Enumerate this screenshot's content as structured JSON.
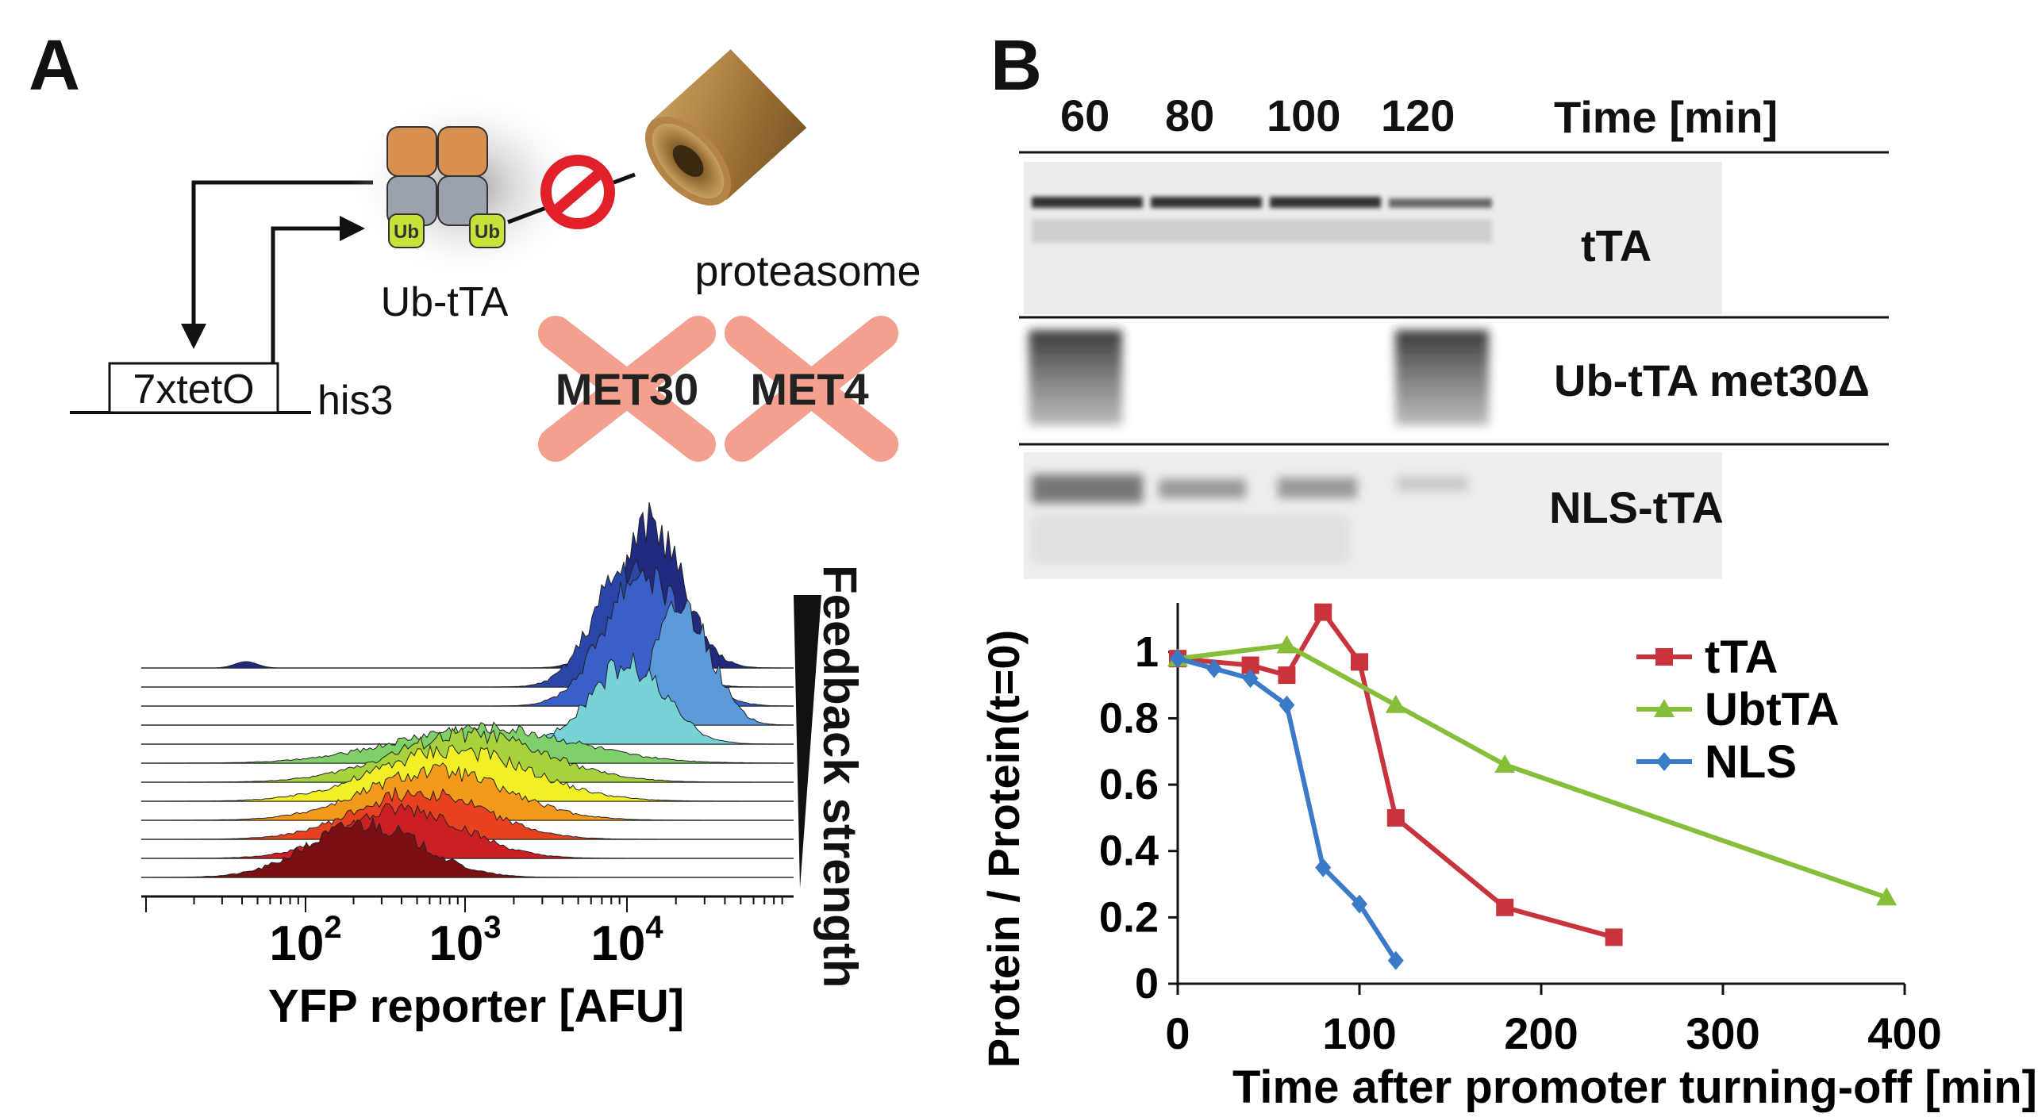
{
  "panel_a": {
    "letter": "A",
    "schematic": {
      "promoter_label": "7xtetO",
      "gene_label": "his3",
      "complex_label": "Ub-tTA",
      "ub_tag": "Ub",
      "proteasome_label": "proteasome",
      "knockouts": [
        "MET30",
        "MET4"
      ]
    },
    "histogram": {
      "xlabel": "YFP reporter [AFU]",
      "xticks": [
        {
          "base": "10",
          "exp": "2"
        },
        {
          "base": "10",
          "exp": "3"
        },
        {
          "base": "10",
          "exp": "4"
        }
      ],
      "gradient_label": "Feedback strength",
      "curve_colors": [
        "#1f2a80",
        "#2a46a8",
        "#3b5fc8",
        "#5a9ad8",
        "#77d2d6",
        "#7fcf6a",
        "#a8d23c",
        "#f1f027",
        "#f39a1c",
        "#e8411f",
        "#cc1f24",
        "#7a0f14"
      ]
    }
  },
  "panel_b": {
    "letter": "B",
    "blot": {
      "time_header": "Time [min]",
      "lanes": [
        "60",
        "80",
        "100",
        "120"
      ],
      "rows": [
        "tTA",
        "Ub-tTA met30Δ",
        "NLS-tTA"
      ]
    },
    "chart_data": {
      "type": "line",
      "xlabel": "Time after promoter turning-off [min]",
      "ylabel": "Protein / Protein(t=0)",
      "xlim": [
        0,
        400
      ],
      "ylim": [
        0,
        1.1
      ],
      "xticks": [
        0,
        100,
        200,
        300,
        400
      ],
      "yticks": [
        {
          "v": 0,
          "label": "0"
        },
        {
          "v": 0.2,
          "label": "0.2"
        },
        {
          "v": 0.4,
          "label": "0.4"
        },
        {
          "v": 0.6,
          "label": "0.6"
        },
        {
          "v": 0.8,
          "label": "0.8"
        },
        {
          "v": 1,
          "label": "1"
        }
      ],
      "legend": "top-right",
      "series": [
        {
          "name": "tTA",
          "color": "#c8333c",
          "marker": "square",
          "x": [
            0,
            40,
            60,
            80,
            100,
            120,
            180,
            240
          ],
          "y": [
            0.98,
            0.96,
            0.93,
            1.12,
            0.97,
            0.5,
            0.23,
            0.14
          ]
        },
        {
          "name": "UbtTA",
          "color": "#86be39",
          "marker": "triangle",
          "x": [
            0,
            60,
            120,
            180,
            390
          ],
          "y": [
            0.98,
            1.02,
            0.84,
            0.66,
            0.26
          ]
        },
        {
          "name": "NLS",
          "color": "#3b79c9",
          "marker": "diamond",
          "x": [
            0,
            20,
            40,
            60,
            80,
            100,
            120
          ],
          "y": [
            0.98,
            0.95,
            0.92,
            0.84,
            0.35,
            0.24,
            0.07
          ]
        }
      ]
    }
  }
}
